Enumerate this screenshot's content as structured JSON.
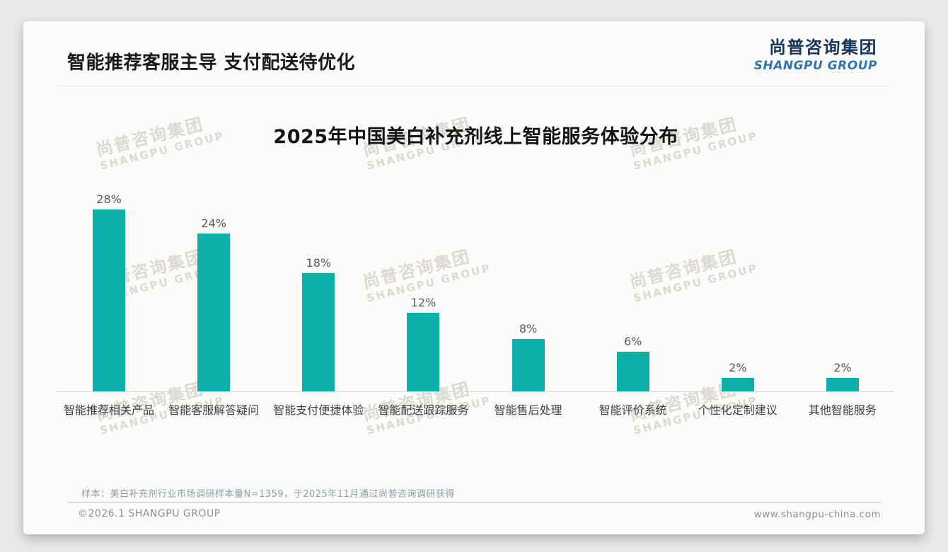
{
  "header": {
    "title": "智能推荐客服主导 支付配送待优化",
    "logo_cn": "尚普咨询集团",
    "logo_en": "SHANGPU GROUP"
  },
  "watermark": {
    "cn": "尚普咨询集团",
    "en": "SHANGPU GROUP"
  },
  "chart_data": {
    "type": "bar",
    "title": "2025年中国美白补充剂线上智能服务体验分布",
    "categories": [
      "智能推荐相关产品",
      "智能客服解答疑问",
      "智能支付便捷体验",
      "智能配送跟踪服务",
      "智能售后处理",
      "智能评价系统",
      "个性化定制建议",
      "其他智能服务"
    ],
    "values": [
      28,
      24,
      18,
      12,
      8,
      6,
      2,
      2
    ],
    "value_labels": [
      "28%",
      "24%",
      "18%",
      "12%",
      "8%",
      "6%",
      "2%",
      "2%"
    ],
    "unit": "%",
    "xlabel": "",
    "ylabel": "",
    "ylim": [
      0,
      30
    ],
    "grid": false,
    "legend": "none",
    "bar_color": "#0db0a8",
    "axis_line_color": "#d9d9d9"
  },
  "footer": {
    "note": "样本：美白补充剂行业市场调研样本量N=1359，于2025年11月通过尚普咨询调研获得",
    "left": "©2026.1 SHANGPU GROUP",
    "right": "www.shangpu-china.com"
  }
}
